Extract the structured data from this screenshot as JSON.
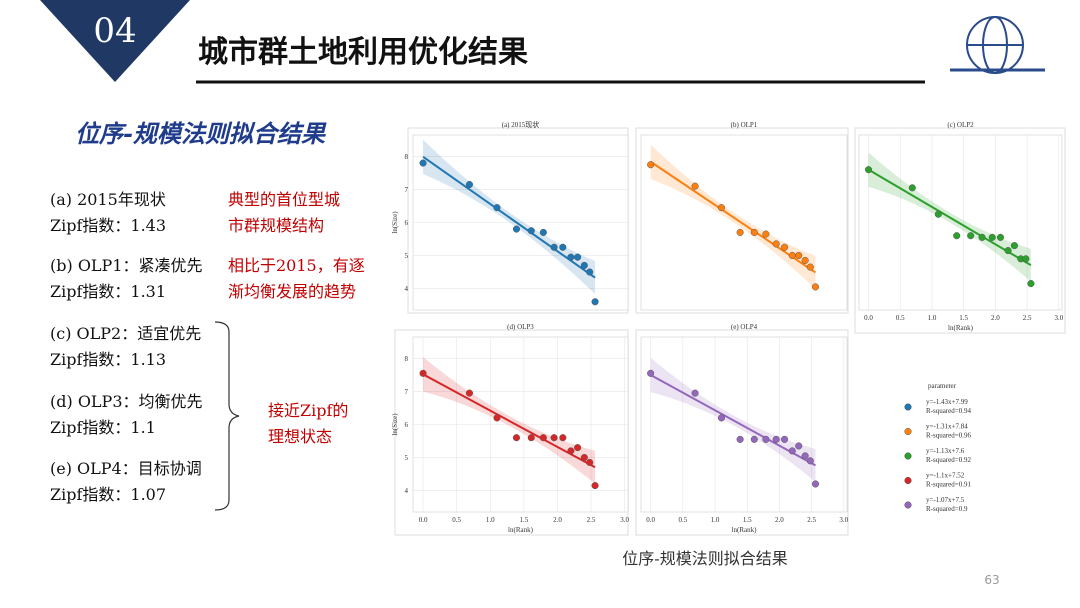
{
  "header": {
    "number": "04",
    "title": "城市群土地利用优化结果"
  },
  "section_title": "位序-规模法则拟合结果",
  "items": [
    {
      "line1": "(a)  2015年现状",
      "line2": "Zipf指数：1.43"
    },
    {
      "line1": "(b) OLP1：紧凑优先",
      "line2": "Zipf指数：1.31"
    },
    {
      "line1": "(c) OLP2：适宜优先",
      "line2": "Zipf指数：1.13"
    },
    {
      "line1": "(d) OLP3：均衡优先",
      "line2": "Zipf指数：1.1"
    },
    {
      "line1": "(e) OLP4：目标协调",
      "line2": "Zipf指数：1.07"
    }
  ],
  "notes": [
    {
      "lines": [
        "典型的首位型城",
        "市群规模结构"
      ]
    },
    {
      "lines": [
        "相比于2015，有逐",
        "渐均衡发展的趋势"
      ]
    },
    {
      "lines": [
        "接近Zipf的",
        "理想状态"
      ]
    }
  ],
  "chart_data": [
    {
      "type": "scatter",
      "title": "(a) 2015现状",
      "color": "#1f77b4",
      "ylabel": "ln(Size)",
      "x": [
        0,
        0.69,
        1.1,
        1.39,
        1.61,
        1.79,
        1.95,
        2.08,
        2.2,
        2.3,
        2.4,
        2.48,
        2.56
      ],
      "values": [
        7.8,
        7.15,
        6.45,
        5.8,
        5.75,
        5.7,
        5.25,
        5.25,
        4.95,
        4.95,
        4.7,
        4.5,
        3.6
      ],
      "fit": {
        "slope": -1.43,
        "intercept": 7.99
      },
      "xlim": [
        -0.15,
        3.05
      ],
      "ylim": [
        3.35,
        8.65
      ],
      "yticks": [
        4,
        5,
        6,
        7,
        8
      ],
      "grid": true
    },
    {
      "type": "scatter",
      "title": "(b) OLP1",
      "color": "#ff7f0e",
      "x": [
        0,
        0.69,
        1.1,
        1.39,
        1.61,
        1.79,
        1.95,
        2.08,
        2.2,
        2.3,
        2.4,
        2.48,
        2.56
      ],
      "values": [
        7.75,
        7.1,
        6.45,
        5.7,
        5.7,
        5.65,
        5.35,
        5.25,
        5.0,
        5.0,
        4.85,
        4.65,
        4.05
      ],
      "fit": {
        "slope": -1.31,
        "intercept": 7.84
      },
      "xlim": [
        -0.15,
        3.05
      ],
      "ylim": [
        3.35,
        8.65
      ],
      "grid": true
    },
    {
      "type": "scatter",
      "title": "(c) OLP2",
      "color": "#2ca02c",
      "xlabel": "ln(Rank)",
      "x": [
        0,
        0.69,
        1.1,
        1.39,
        1.61,
        1.79,
        1.95,
        2.08,
        2.2,
        2.3,
        2.4,
        2.48,
        2.56
      ],
      "values": [
        7.6,
        7.05,
        6.25,
        5.6,
        5.6,
        5.55,
        5.55,
        5.55,
        5.15,
        5.3,
        4.9,
        4.9,
        4.15
      ],
      "fit": {
        "slope": -1.13,
        "intercept": 7.6
      },
      "xlim": [
        -0.15,
        3.05
      ],
      "ylim": [
        3.35,
        8.65
      ],
      "xticks": [
        {
          "value": 0,
          "label": "0.0"
        },
        {
          "value": 0.5,
          "label": "0.5"
        },
        {
          "value": 1,
          "label": "1.0"
        },
        {
          "value": 1.5,
          "label": "1.5"
        },
        {
          "value": 2,
          "label": "2.0"
        },
        {
          "value": 2.5,
          "label": "2.5"
        },
        {
          "value": 3,
          "label": "3.0"
        }
      ],
      "grid": true
    },
    {
      "type": "scatter",
      "title": "(d) OLP3",
      "color": "#d62728",
      "xlabel": "ln(Rank)",
      "ylabel": "ln(Size)",
      "x": [
        0,
        0.69,
        1.1,
        1.39,
        1.61,
        1.79,
        1.95,
        2.08,
        2.2,
        2.3,
        2.4,
        2.48,
        2.56
      ],
      "values": [
        7.55,
        6.95,
        6.2,
        5.6,
        5.6,
        5.6,
        5.6,
        5.6,
        5.2,
        5.3,
        5.0,
        4.85,
        4.15
      ],
      "fit": {
        "slope": -1.1,
        "intercept": 7.52
      },
      "xlim": [
        -0.15,
        3.05
      ],
      "ylim": [
        3.35,
        8.65
      ],
      "xticks": [
        {
          "value": 0,
          "label": "0.0"
        },
        {
          "value": 0.5,
          "label": "0.5"
        },
        {
          "value": 1,
          "label": "1.0"
        },
        {
          "value": 1.5,
          "label": "1.5"
        },
        {
          "value": 2,
          "label": "2.0"
        },
        {
          "value": 2.5,
          "label": "2.5"
        },
        {
          "value": 3,
          "label": "3.0"
        }
      ],
      "yticks": [
        4,
        5,
        6,
        7,
        8
      ],
      "grid": true
    },
    {
      "type": "scatter",
      "title": "(e) OLP4",
      "color": "#9467bd",
      "xlabel": "ln(Rank)",
      "x": [
        0,
        0.69,
        1.1,
        1.39,
        1.61,
        1.79,
        1.95,
        2.08,
        2.2,
        2.3,
        2.4,
        2.48,
        2.56
      ],
      "values": [
        7.55,
        6.95,
        6.2,
        5.55,
        5.55,
        5.55,
        5.55,
        5.55,
        5.2,
        5.35,
        5.05,
        4.9,
        4.2
      ],
      "fit": {
        "slope": -1.07,
        "intercept": 7.5
      },
      "xlim": [
        -0.15,
        3.05
      ],
      "ylim": [
        3.35,
        8.65
      ],
      "xticks": [
        {
          "value": 0,
          "label": "0.0"
        },
        {
          "value": 0.5,
          "label": "0.5"
        },
        {
          "value": 1,
          "label": "1.0"
        },
        {
          "value": 1.5,
          "label": "1.5"
        },
        {
          "value": 2,
          "label": "2.0"
        },
        {
          "value": 2.5,
          "label": "2.5"
        },
        {
          "value": 3,
          "label": "3.0"
        }
      ],
      "grid": true
    }
  ],
  "legend": {
    "title": "parameter",
    "entries": [
      {
        "equation": "y=-1.43x+7.99",
        "r_squared": "R-squared=0.94"
      },
      {
        "equation": "y=-1.31x+7.84",
        "r_squared": "R-squared=0.96"
      },
      {
        "equation": "y=-1.13x+7.6",
        "r_squared": "R-squared=0.92"
      },
      {
        "equation": "y=-1.1x+7.52",
        "r_squared": "R-squared=0.91"
      },
      {
        "equation": "y=-1.07x+7.5",
        "r_squared": "R-squared=0.9"
      }
    ]
  },
  "caption": "位序-规模法则拟合结果",
  "page_number": "63"
}
